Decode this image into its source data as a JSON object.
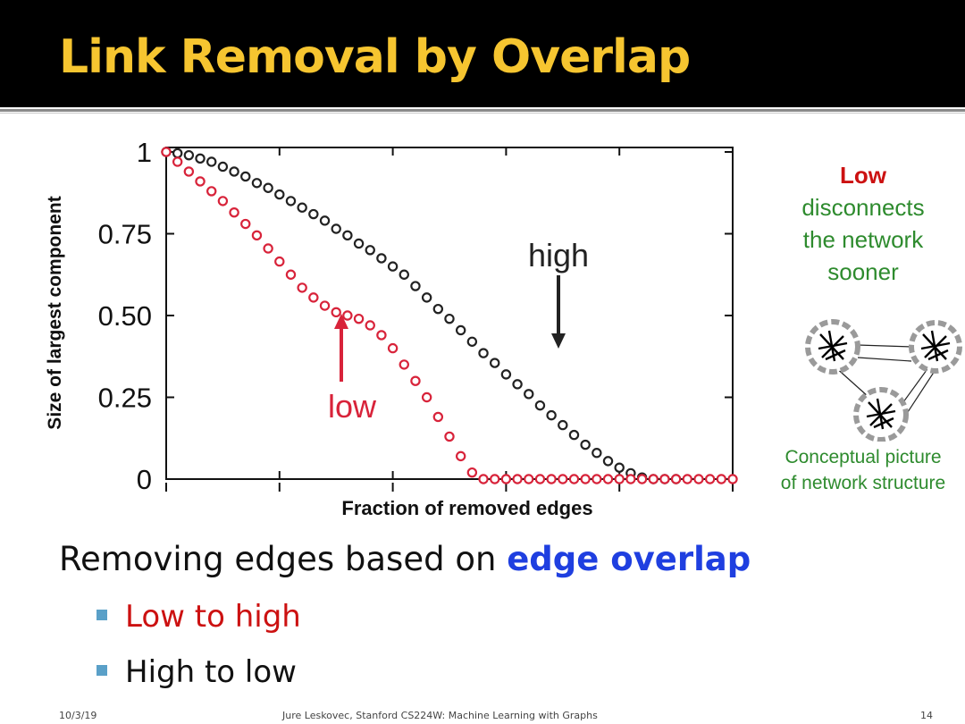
{
  "title": "Link Removal by Overlap",
  "side_note": {
    "low": "Low",
    "rest": [
      "disconnects",
      "the network",
      "sooner"
    ]
  },
  "side_caption": [
    "Conceptual picture",
    "of network structure"
  ],
  "heading_plain": "Removing edges based on ",
  "heading_highlight": "edge overlap",
  "bullets": [
    "Low to high",
    "High to low"
  ],
  "footer": {
    "date": "10/3/19",
    "credit": "Jure Leskovec, Stanford CS224W: Machine Learning with Graphs",
    "page": "14"
  },
  "colors": {
    "title": "#f6c530",
    "low_series": "#d8233a",
    "high_series": "#222222",
    "note_green": "#2e8b2e",
    "highlight_blue": "#1f3fe0"
  },
  "chart_data": {
    "type": "scatter",
    "xlabel": "Fraction of removed edges",
    "ylabel": "Size of largest component",
    "xlim": [
      0,
      1
    ],
    "ylim": [
      0,
      1
    ],
    "y_ticks": [
      0,
      0.25,
      0.5,
      0.75,
      1
    ],
    "y_tick_labels": [
      "0",
      "0.25",
      "0.50",
      "0.75",
      "1"
    ],
    "grid": false,
    "series": [
      {
        "name": "high",
        "color": "#222222",
        "x": [
          0.0,
          0.02,
          0.04,
          0.06,
          0.08,
          0.1,
          0.12,
          0.14,
          0.16,
          0.18,
          0.2,
          0.22,
          0.24,
          0.26,
          0.28,
          0.3,
          0.32,
          0.34,
          0.36,
          0.38,
          0.4,
          0.42,
          0.44,
          0.46,
          0.48,
          0.5,
          0.52,
          0.54,
          0.56,
          0.58,
          0.6,
          0.62,
          0.64,
          0.66,
          0.68,
          0.7,
          0.72,
          0.74,
          0.76,
          0.78,
          0.8,
          0.82,
          0.84,
          0.86,
          0.88,
          0.9
        ],
        "y": [
          1.0,
          0.996,
          0.99,
          0.98,
          0.97,
          0.955,
          0.94,
          0.925,
          0.905,
          0.89,
          0.87,
          0.85,
          0.83,
          0.81,
          0.79,
          0.765,
          0.745,
          0.72,
          0.7,
          0.675,
          0.65,
          0.625,
          0.59,
          0.555,
          0.52,
          0.49,
          0.455,
          0.42,
          0.385,
          0.355,
          0.32,
          0.29,
          0.26,
          0.225,
          0.195,
          0.165,
          0.135,
          0.105,
          0.08,
          0.055,
          0.035,
          0.018,
          0.005,
          0.0,
          0.0,
          0.0
        ]
      },
      {
        "name": "low",
        "color": "#d8233a",
        "x": [
          0.0,
          0.02,
          0.04,
          0.06,
          0.08,
          0.1,
          0.12,
          0.14,
          0.16,
          0.18,
          0.2,
          0.22,
          0.24,
          0.26,
          0.28,
          0.3,
          0.32,
          0.34,
          0.36,
          0.38,
          0.4,
          0.42,
          0.44,
          0.46,
          0.48,
          0.5,
          0.52,
          0.54,
          0.56,
          0.58,
          0.6,
          0.62,
          0.64,
          0.66,
          0.68,
          0.7,
          0.72,
          0.74,
          0.76,
          0.78,
          0.8,
          0.82,
          0.84,
          0.86,
          0.88,
          0.9,
          0.92,
          0.94,
          0.96,
          0.98,
          1.0
        ],
        "y": [
          1.0,
          0.97,
          0.94,
          0.91,
          0.88,
          0.85,
          0.815,
          0.78,
          0.745,
          0.705,
          0.665,
          0.625,
          0.585,
          0.555,
          0.53,
          0.51,
          0.5,
          0.49,
          0.47,
          0.44,
          0.4,
          0.35,
          0.3,
          0.25,
          0.19,
          0.13,
          0.07,
          0.02,
          0.0,
          0.0,
          0.0,
          0.0,
          0.0,
          0.0,
          0.0,
          0.0,
          0.0,
          0.0,
          0.0,
          0.0,
          0.0,
          0.0,
          0.0,
          0.0,
          0.0,
          0.0,
          0.0,
          0.0,
          0.0,
          0.0,
          0.0
        ]
      }
    ],
    "annotations": [
      {
        "text": "high",
        "arrow": "down",
        "color": "#222222"
      },
      {
        "text": "low",
        "arrow": "up",
        "color": "#d8233a"
      }
    ]
  }
}
